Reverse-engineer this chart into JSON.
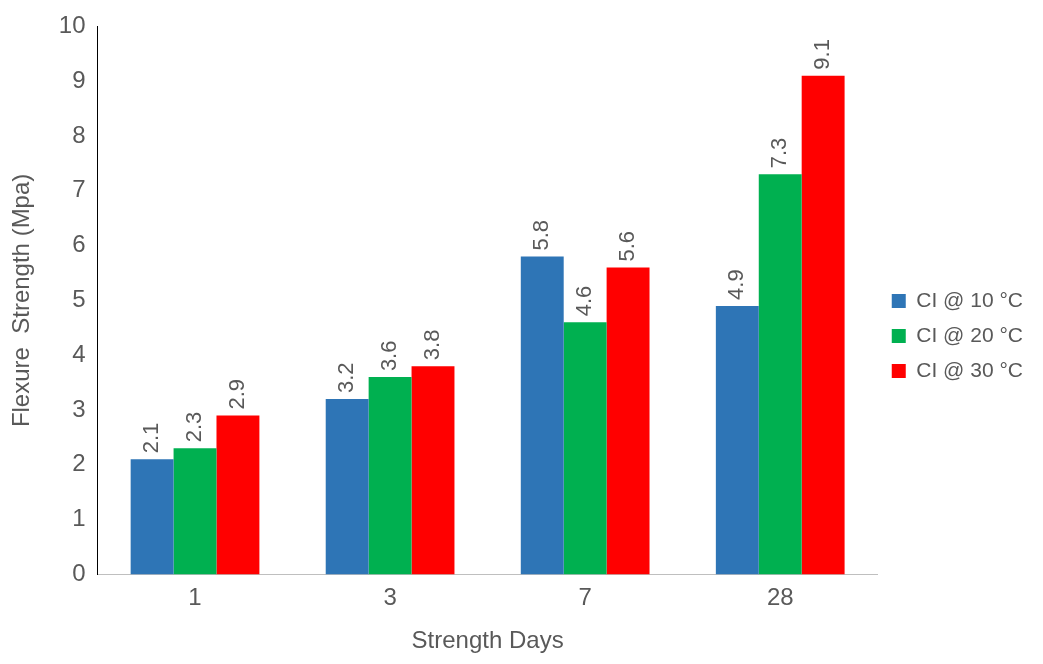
{
  "chart_data": {
    "type": "bar",
    "xlabel": "Strength Days",
    "ylabel": "Flexure  Strength (Mpa)",
    "categories": [
      "1",
      "3",
      "7",
      "28"
    ],
    "series": [
      {
        "name": "CI @ 10 °C",
        "color": "#2e75b6",
        "values": [
          2.1,
          3.2,
          5.8,
          4.9
        ]
      },
      {
        "name": "CI @ 20 °C",
        "color": "#00b050",
        "values": [
          2.3,
          3.6,
          4.6,
          7.3
        ]
      },
      {
        "name": "CI @ 30 °C",
        "color": "#ff0000",
        "values": [
          2.9,
          3.8,
          5.6,
          9.1
        ]
      }
    ],
    "ylim": [
      0,
      10
    ],
    "yticks": [
      0,
      1,
      2,
      3,
      4,
      5,
      6,
      7,
      8,
      9,
      10
    ],
    "grid": false,
    "legend": "right",
    "data_labels": true
  }
}
